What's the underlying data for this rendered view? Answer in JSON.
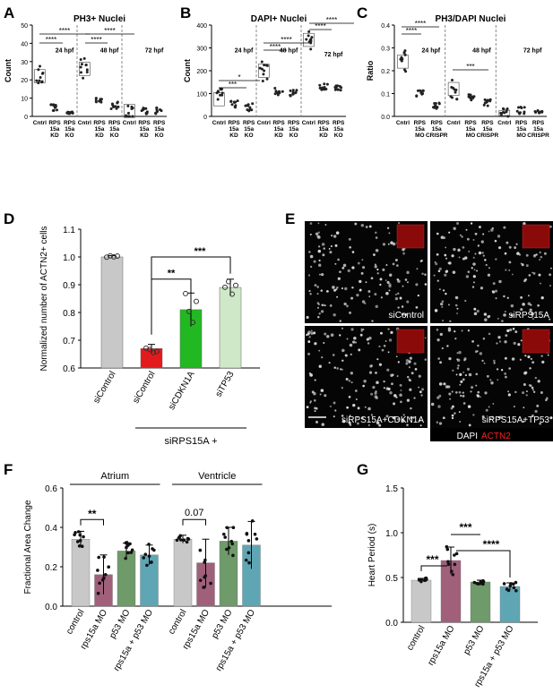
{
  "panels": {
    "A": "A",
    "B": "B",
    "C": "C",
    "D": "D",
    "E": "E",
    "F": "F",
    "G": "G"
  },
  "colors": {
    "grey": "#c8c8c8",
    "red": "#e31a1c",
    "green": "#22b822",
    "lightgreen": "#cfe8c8",
    "mauve": "#a0607a",
    "sage": "#6f9a6a",
    "teal": "#5fa6b4"
  },
  "chart_data": [
    {
      "id": "A",
      "type": "scatter",
      "title": "PH3+ Nuclei",
      "ylabel": "Count",
      "ylim": [
        0,
        50
      ],
      "yticks": [
        "0",
        "10",
        "20",
        "30",
        "40",
        "50"
      ],
      "groups": [
        {
          "label": "24 hpf",
          "categories": [
            "Cntrl",
            "RPS\n15a\nKD",
            "RPS\n15a\nKO"
          ],
          "approx_medians": [
            22,
            5,
            2
          ]
        },
        {
          "label": "48 hpf",
          "categories": [
            "Cntrl",
            "RPS\n15a\nKD",
            "RPS\n15a\nKO"
          ],
          "approx_medians": [
            26,
            8,
            6
          ]
        },
        {
          "label": "72 hpf",
          "categories": [
            "Cntrl",
            "RPS\n15a\nKD",
            "RPS\n15a\nKO"
          ],
          "approx_medians": [
            3,
            3,
            3
          ]
        }
      ],
      "significance": [
        "****",
        "****",
        "****",
        "****"
      ]
    },
    {
      "id": "B",
      "type": "scatter",
      "title": "DAPI+ Nuclei",
      "ylabel": "Count",
      "ylim": [
        0,
        400
      ],
      "yticks": [
        "0",
        "100",
        "200",
        "300",
        "400"
      ],
      "groups": [
        {
          "label": "24 hpf",
          "categories": [
            "Cntrl",
            "RPS\n15a\nKD",
            "RPS\n15a\nKO"
          ],
          "approx_medians": [
            75,
            55,
            40
          ]
        },
        {
          "label": "48 hpf",
          "categories": [
            "Cntrl",
            "RPS\n15a\nKD",
            "RPS\n15a\nKO"
          ],
          "approx_medians": [
            200,
            110,
            105
          ]
        },
        {
          "label": "72 hpf",
          "categories": [
            "Cntrl",
            "RPS\n15a\nKD",
            "RPS\n15a\nKO"
          ],
          "approx_medians": [
            335,
            130,
            125
          ]
        }
      ],
      "significance": [
        "*",
        "***",
        "****",
        "****",
        "****",
        "****"
      ]
    },
    {
      "id": "C",
      "type": "scatter",
      "title": "PH3/DAPI Nuclei",
      "ylabel": "Ratio",
      "ylim": [
        0,
        0.4
      ],
      "yticks": [
        "0.0",
        "0.1",
        "0.2",
        "0.3",
        "0.4"
      ],
      "groups": [
        {
          "label": "24 hpf",
          "categories": [
            "Cntrl",
            "RPS\n15a\nMO",
            "RPS\n15a\nCRISPR"
          ],
          "approx_medians": [
            0.24,
            0.1,
            0.05
          ]
        },
        {
          "label": "48 hpf",
          "categories": [
            "Cntrl",
            "RPS\n15a\nMO",
            "RPS\n15a\nCRISPR"
          ],
          "approx_medians": [
            0.12,
            0.08,
            0.06
          ]
        },
        {
          "label": "72 hpf",
          "categories": [
            "Cntrl",
            "RPS\n15a\nMO",
            "RPS\n15a\nCRISPR"
          ],
          "approx_medians": [
            0.015,
            0.025,
            0.02
          ]
        }
      ],
      "significance": [
        "****",
        "****",
        "***"
      ]
    },
    {
      "id": "D",
      "type": "bar",
      "ylabel": "Normalized number of ACTN2+ cells",
      "ylim": [
        0.6,
        1.1
      ],
      "yticks": [
        "0.6",
        "0.7",
        "0.8",
        "0.9",
        "1.0",
        "1.1"
      ],
      "categories": [
        "siControl",
        "siControl",
        "siCDKN1A",
        "siTP53"
      ],
      "values": [
        1.0,
        0.67,
        0.81,
        0.89
      ],
      "errors": [
        0.005,
        0.015,
        0.06,
        0.03
      ],
      "group_label": "siRPS15A +",
      "significance": [
        "**",
        "***"
      ]
    },
    {
      "id": "F",
      "type": "bar",
      "ylabel": "Fractional Area Change",
      "ylim": [
        0,
        0.6
      ],
      "yticks": [
        "0.0",
        "0.2",
        "0.4",
        "0.6"
      ],
      "groups": [
        "Atrium",
        "Ventricle"
      ],
      "categories": [
        "control",
        "rps15a MO",
        "p53 MO",
        "rps15a + p53 MO",
        "control",
        "rps15a MO",
        "p53 MO",
        "rps15a + p53 MO"
      ],
      "values": [
        0.34,
        0.16,
        0.28,
        0.26,
        0.34,
        0.22,
        0.33,
        0.31
      ],
      "errors": [
        0.04,
        0.1,
        0.04,
        0.05,
        0.02,
        0.12,
        0.07,
        0.12
      ],
      "significance": [
        "**",
        "0.07"
      ]
    },
    {
      "id": "G",
      "type": "bar",
      "ylabel": "Heart Period (s)",
      "ylim": [
        0,
        1.5
      ],
      "yticks": [
        "0.0",
        "0.5",
        "1.0",
        "1.5"
      ],
      "categories": [
        "control",
        "rps15a MO",
        "p53 MO",
        "rps15a + p53 MO"
      ],
      "values": [
        0.47,
        0.69,
        0.45,
        0.4
      ],
      "errors": [
        0.02,
        0.15,
        0.02,
        0.04
      ],
      "significance": [
        "***",
        "***",
        "****"
      ]
    }
  ],
  "micrographs": {
    "labels": [
      "siControl",
      "siRPS15A",
      "siRPS15A+CDKN1A",
      "siRPS15A+TP53"
    ],
    "legend_dapi": "DAPI",
    "legend_actn2": "ACTN2"
  }
}
